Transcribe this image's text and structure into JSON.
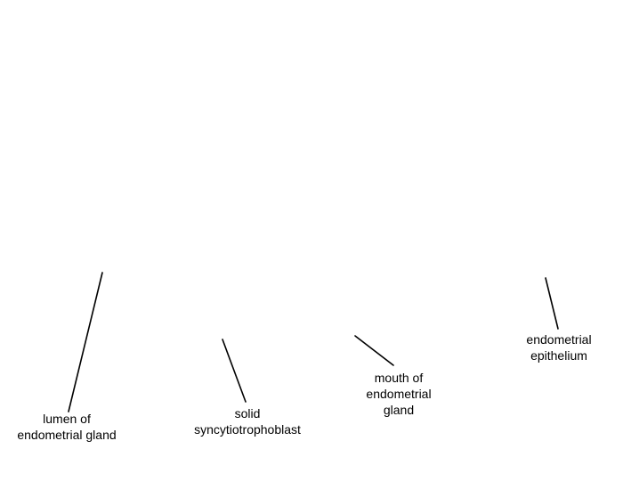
{
  "labels": {
    "lumen": [
      "lumen of",
      "endometrial gland"
    ],
    "solid": [
      "solid",
      "syncytiotrophoblast"
    ],
    "mouth": [
      "mouth of",
      "endometrial",
      "gland"
    ],
    "epithelium": [
      "endometrial",
      "epithelium"
    ]
  },
  "colors": {
    "background": "#ffffff",
    "text": "#000000",
    "leader_line": "#000000"
  }
}
